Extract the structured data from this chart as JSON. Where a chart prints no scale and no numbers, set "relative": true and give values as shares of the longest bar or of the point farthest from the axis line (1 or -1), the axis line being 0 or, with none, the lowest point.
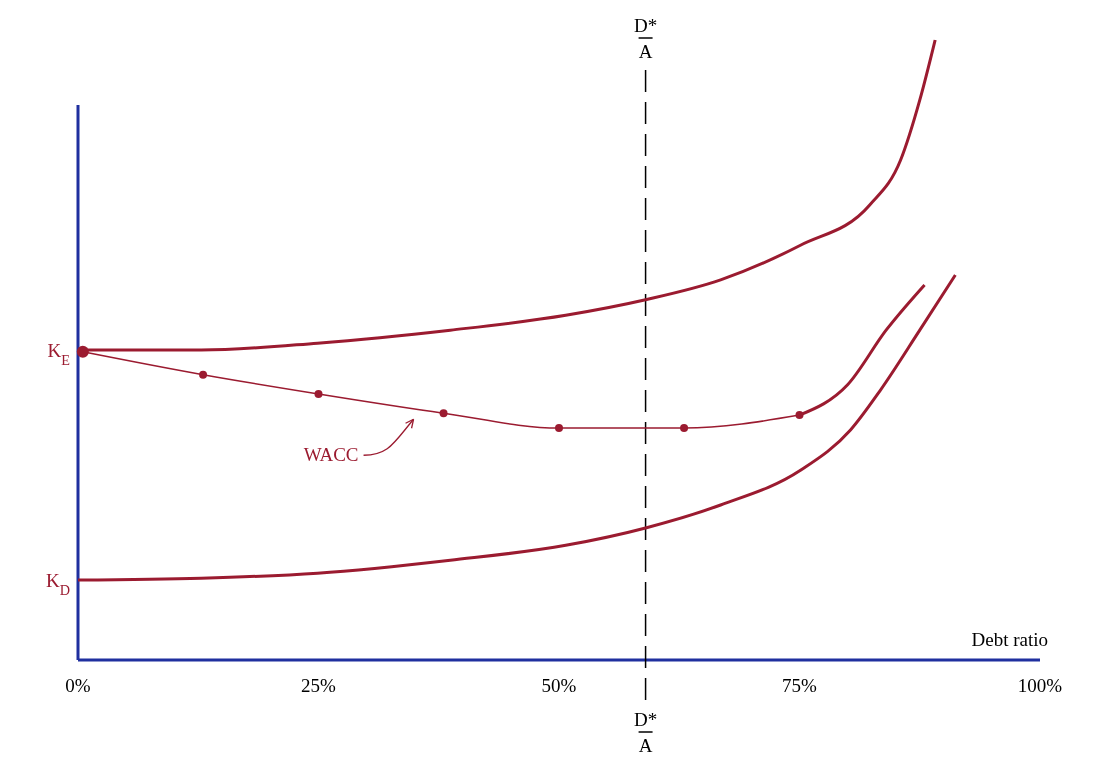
{
  "chart_data": {
    "type": "line",
    "relative": true,
    "xlabel": "Debt ratio",
    "xlim": [
      0,
      100
    ],
    "xticks": [
      {
        "value": 0,
        "label": "0%"
      },
      {
        "value": 25,
        "label": "25%"
      },
      {
        "value": 50,
        "label": "50%"
      },
      {
        "value": 75,
        "label": "75%"
      },
      {
        "value": 100,
        "label": "100%"
      }
    ],
    "grid": false,
    "legend": false,
    "series": [
      {
        "color": "#9b1b30",
        "marker": "none",
        "x": [
          0,
          12.8,
          24.9,
          38.7,
          50.7,
          59.0,
          66.8,
          75.1,
          82.3,
          85.5,
          87.5,
          89.1
        ],
        "values": [
          0.5,
          0.5,
          0.511,
          0.532,
          0.556,
          0.581,
          0.613,
          0.669,
          0.734,
          0.806,
          0.903,
          1.0
        ]
      },
      {
        "name": "WACC",
        "color": "#9b1b30",
        "marker": "circle",
        "x": [
          0.5,
          13,
          25,
          38,
          50,
          63,
          75
        ],
        "values": [
          0.497,
          0.46,
          0.429,
          0.398,
          0.374,
          0.374,
          0.395
        ]
      },
      {
        "color": "#9b1b30",
        "marker": "none",
        "x": [
          75,
          80,
          84,
          88
        ],
        "values": [
          0.395,
          0.444,
          0.532,
          0.605
        ]
      },
      {
        "color": "#9b1b30",
        "marker": "none",
        "x": [
          0,
          12.8,
          24.9,
          38.7,
          50.7,
          59.0,
          66.8,
          75.1,
          80.3,
          83.4,
          87.5,
          91.2
        ],
        "values": [
          0.129,
          0.132,
          0.14,
          0.161,
          0.185,
          0.213,
          0.25,
          0.306,
          0.371,
          0.435,
          0.532,
          0.621
        ]
      }
    ],
    "ref_lines": [
      {
        "axis": "x",
        "value": 59,
        "label": "D* A",
        "line_style": "dashed",
        "color": "#000000"
      }
    ],
    "annotations": [
      {
        "text": "K$_{E}$",
        "x": 0,
        "y": 0.5
      },
      {
        "text": "K$_{D}$",
        "x": 0,
        "y": 0.129
      },
      "D* A"
    ]
  }
}
